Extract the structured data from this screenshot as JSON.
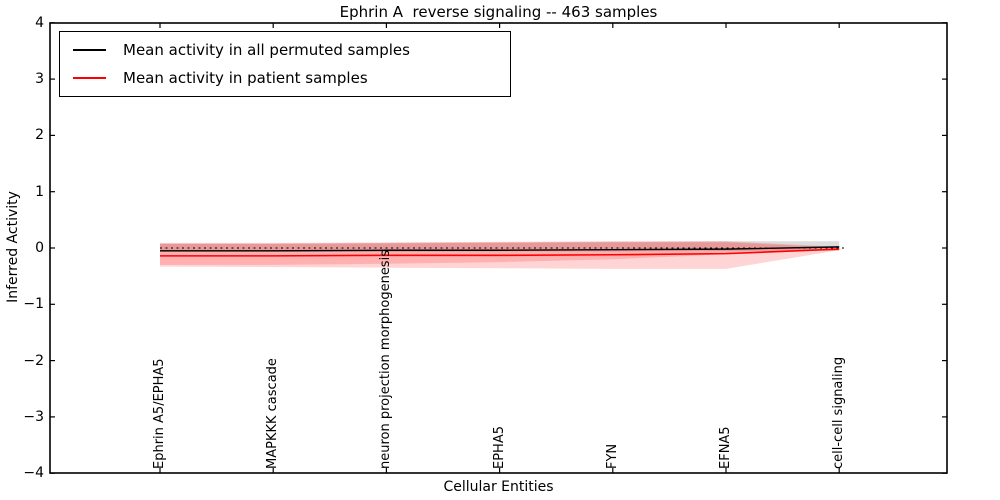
{
  "chart_data": {
    "type": "line",
    "title": "Ephrin A  reverse signaling -- 463 samples",
    "xlabel": "Cellular Entities",
    "ylabel": "Inferred Activity",
    "ylim": [
      -4,
      4
    ],
    "y_ticks": [
      4,
      3,
      2,
      1,
      0,
      -1,
      -2,
      -3,
      -4
    ],
    "grid": false,
    "legend_position": "upper left",
    "categories": [
      "Ephrin A5/EPHA5",
      "MAPKKK cascade",
      "neuron projection morphogenesis",
      "EPHA5",
      "FYN",
      "EFNA5",
      "cell-cell signaling"
    ],
    "series": [
      {
        "name": "Mean activity in all permuted samples",
        "color": "#000000",
        "values": [
          -0.05,
          -0.05,
          -0.04,
          -0.04,
          -0.03,
          -0.02,
          0.02
        ]
      },
      {
        "name": "Mean activity in patient samples",
        "color": "#ff0000",
        "values": [
          -0.14,
          -0.14,
          -0.13,
          -0.13,
          -0.12,
          -0.1,
          -0.02
        ]
      }
    ],
    "bands": [
      {
        "name": "permuted-samples-range",
        "color": "rgba(128,128,128,0.28)",
        "upper": [
          0.08,
          0.08,
          0.09,
          0.1,
          0.11,
          0.12,
          0.12
        ],
        "lower": [
          -0.07,
          -0.07,
          -0.07,
          -0.06,
          -0.06,
          -0.05,
          -0.05
        ]
      },
      {
        "name": "patient-samples-range-outer",
        "color": "rgba(255,0,0,0.17)",
        "upper": [
          0.09,
          0.09,
          0.1,
          0.11,
          0.12,
          0.12,
          0.02
        ],
        "lower": [
          -0.33,
          -0.34,
          -0.35,
          -0.36,
          -0.37,
          -0.37,
          -0.04
        ]
      },
      {
        "name": "patient-samples-range-inner",
        "color": "rgba(255,0,0,0.17)",
        "upper": [
          0.07,
          0.07,
          0.08,
          0.09,
          0.1,
          0.1,
          0.01
        ],
        "lower": [
          -0.3,
          -0.3,
          -0.28,
          -0.25,
          -0.2,
          -0.11,
          -0.02
        ]
      }
    ],
    "zero_line": {
      "value": 0,
      "style": "dotted",
      "color": "#000000"
    }
  }
}
